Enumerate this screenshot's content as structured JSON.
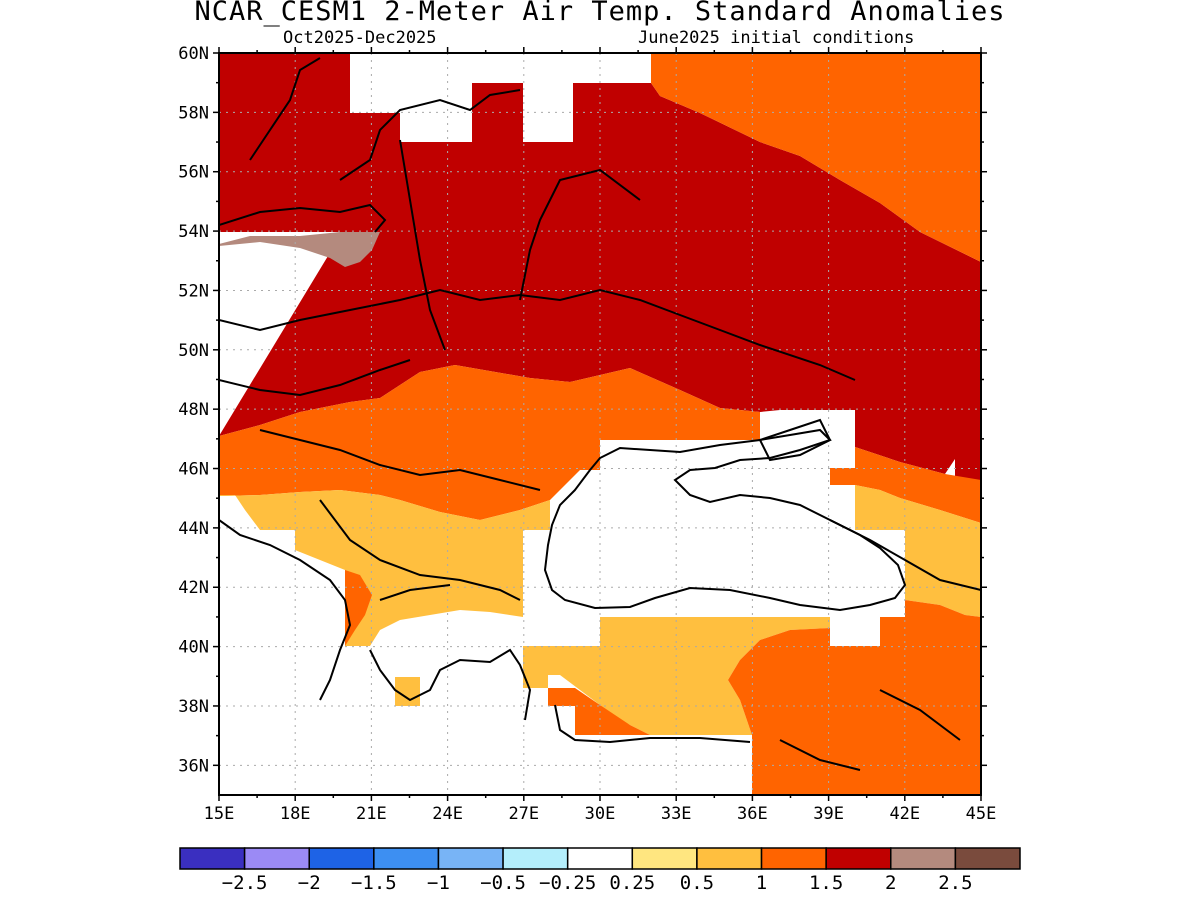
{
  "header": {
    "title": "NCAR_CESM1 2-Meter Air Temp. Standard Anomalies",
    "period": "Oct2025-Dec2025",
    "init": "June2025 initial conditions"
  },
  "map": {
    "lon_range": [
      15,
      45
    ],
    "lat_range": [
      35,
      60
    ],
    "lat_labels": [
      "60N",
      "58N",
      "56N",
      "54N",
      "52N",
      "50N",
      "48N",
      "46N",
      "44N",
      "42N",
      "40N",
      "38N",
      "36N"
    ],
    "lon_labels": [
      "15E",
      "18E",
      "21E",
      "24E",
      "27E",
      "30E",
      "33E",
      "36E",
      "39E",
      "42E",
      "45E"
    ],
    "grid": true
  },
  "colorbar": {
    "colors": [
      "#3a2fc0",
      "#9b8af5",
      "#1e63e6",
      "#3d8ff2",
      "#78b4f6",
      "#b4eefb",
      "#ffffff",
      "#ffe680",
      "#ffbf3f",
      "#ff6400",
      "#c00000",
      "#b48a7e",
      "#7a4b3d"
    ],
    "labels": [
      "-2.5",
      "-2",
      "-1.5",
      "-1",
      "-0.5",
      "-0.25",
      "0.25",
      "0.5",
      "1",
      "1.5",
      "2",
      "2.5"
    ]
  }
}
